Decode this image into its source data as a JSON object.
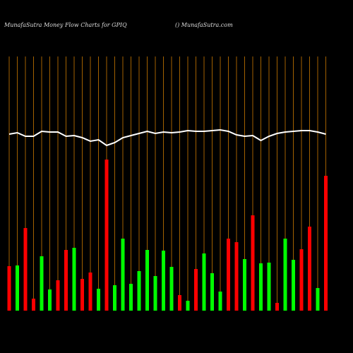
{
  "chart_data": {
    "type": "bar",
    "title": "MunafaSutra  Money Flow  Charts for GPIQ",
    "subtitle": "() MunafaSutra.com",
    "categories": [
      null,
      null,
      null,
      null,
      null,
      null,
      null,
      null,
      null,
      null,
      null,
      null,
      null,
      null,
      null,
      null,
      null,
      null,
      null,
      null,
      null,
      null,
      null,
      null,
      null,
      null,
      null,
      null,
      null,
      null,
      null,
      null,
      null,
      null,
      null,
      null,
      null,
      null,
      null,
      null
    ],
    "values": [
      63,
      64,
      117,
      17,
      77,
      30,
      43,
      86,
      89,
      45,
      54,
      31,
      214,
      36,
      102,
      38,
      56,
      86,
      49,
      85,
      62,
      22,
      14,
      59,
      81,
      53,
      27,
      102,
      97,
      73,
      135,
      67,
      68,
      11,
      102,
      72,
      87,
      119,
      32,
      191
    ],
    "colors": [
      "#ff0000",
      "#00ff00",
      "#ff0000",
      "#ff0000",
      "#00ff00",
      "#00ff00",
      "#ff0000",
      "#ff0000",
      "#00ff00",
      "#ff0000",
      "#ff0000",
      "#00ff00",
      "#ff0000",
      "#00ff00",
      "#00ff00",
      "#00ff00",
      "#00ff00",
      "#00ff00",
      "#00ff00",
      "#00ff00",
      "#00ff00",
      "#ff0000",
      "#00ff00",
      "#ff0000",
      "#00ff00",
      "#00ff00",
      "#00ff00",
      "#ff0000",
      "#ff0000",
      "#00ff00",
      "#ff0000",
      "#00ff00",
      "#00ff00",
      "#ff0000",
      "#00ff00",
      "#00ff00",
      "#ff0000",
      "#ff0000",
      "#00ff00",
      "#ff0000"
    ],
    "line": {
      "color": "#ffffff",
      "values": [
        250,
        252,
        247,
        247,
        254,
        253,
        253,
        247,
        248,
        245,
        240,
        242,
        234,
        238,
        245,
        248,
        251,
        254,
        251,
        253,
        252,
        253,
        255,
        254,
        254,
        255,
        256,
        254,
        249,
        247,
        248,
        241,
        247,
        251,
        253,
        254,
        255,
        255,
        253,
        250
      ]
    },
    "ylim": [
      0,
      360
    ],
    "gridline_color": "#cc7a00"
  }
}
